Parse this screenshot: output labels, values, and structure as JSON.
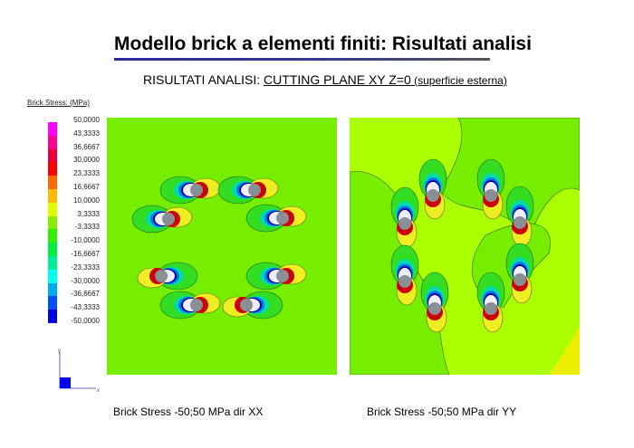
{
  "slide": {
    "title": "Modello brick a elementi finiti: Risultati analisi",
    "subtitle_prefix": "RISULTATI ANALISI: ",
    "subtitle_underlined": "CUTTING PLANE XY Z=0",
    "subtitle_small": " (superficie esterna)"
  },
  "legend": {
    "title": "Brick Stress: (MPa)",
    "labels": [
      "50,0000",
      "43,3333",
      "36,6667",
      "30,0000",
      "23,3333",
      "16,6667",
      "10,0000",
      "3,3333",
      "-3,3333",
      "-10,0000",
      "-16,6667",
      "-23,3333",
      "-30,0000",
      "-36,6667",
      "-43,3333",
      "-50,0000"
    ],
    "colors": [
      "#ff00ff",
      "#ff0090",
      "#e8003c",
      "#ff0000",
      "#ff6a00",
      "#ffbb00",
      "#ddff00",
      "#88ee00",
      "#33ee00",
      "#00ee40",
      "#00ee99",
      "#00ffee",
      "#00aaee",
      "#0050ff",
      "#0000e6"
    ],
    "axis_labels": {
      "y": "y",
      "x": "x"
    }
  },
  "plots": [
    {
      "caption": "Brick Stress -50;50 MPa dir XX",
      "background": "#77ee00"
    },
    {
      "caption": "Brick Stress -50;50 MPa dir YY",
      "background": "#aaff00"
    }
  ]
}
